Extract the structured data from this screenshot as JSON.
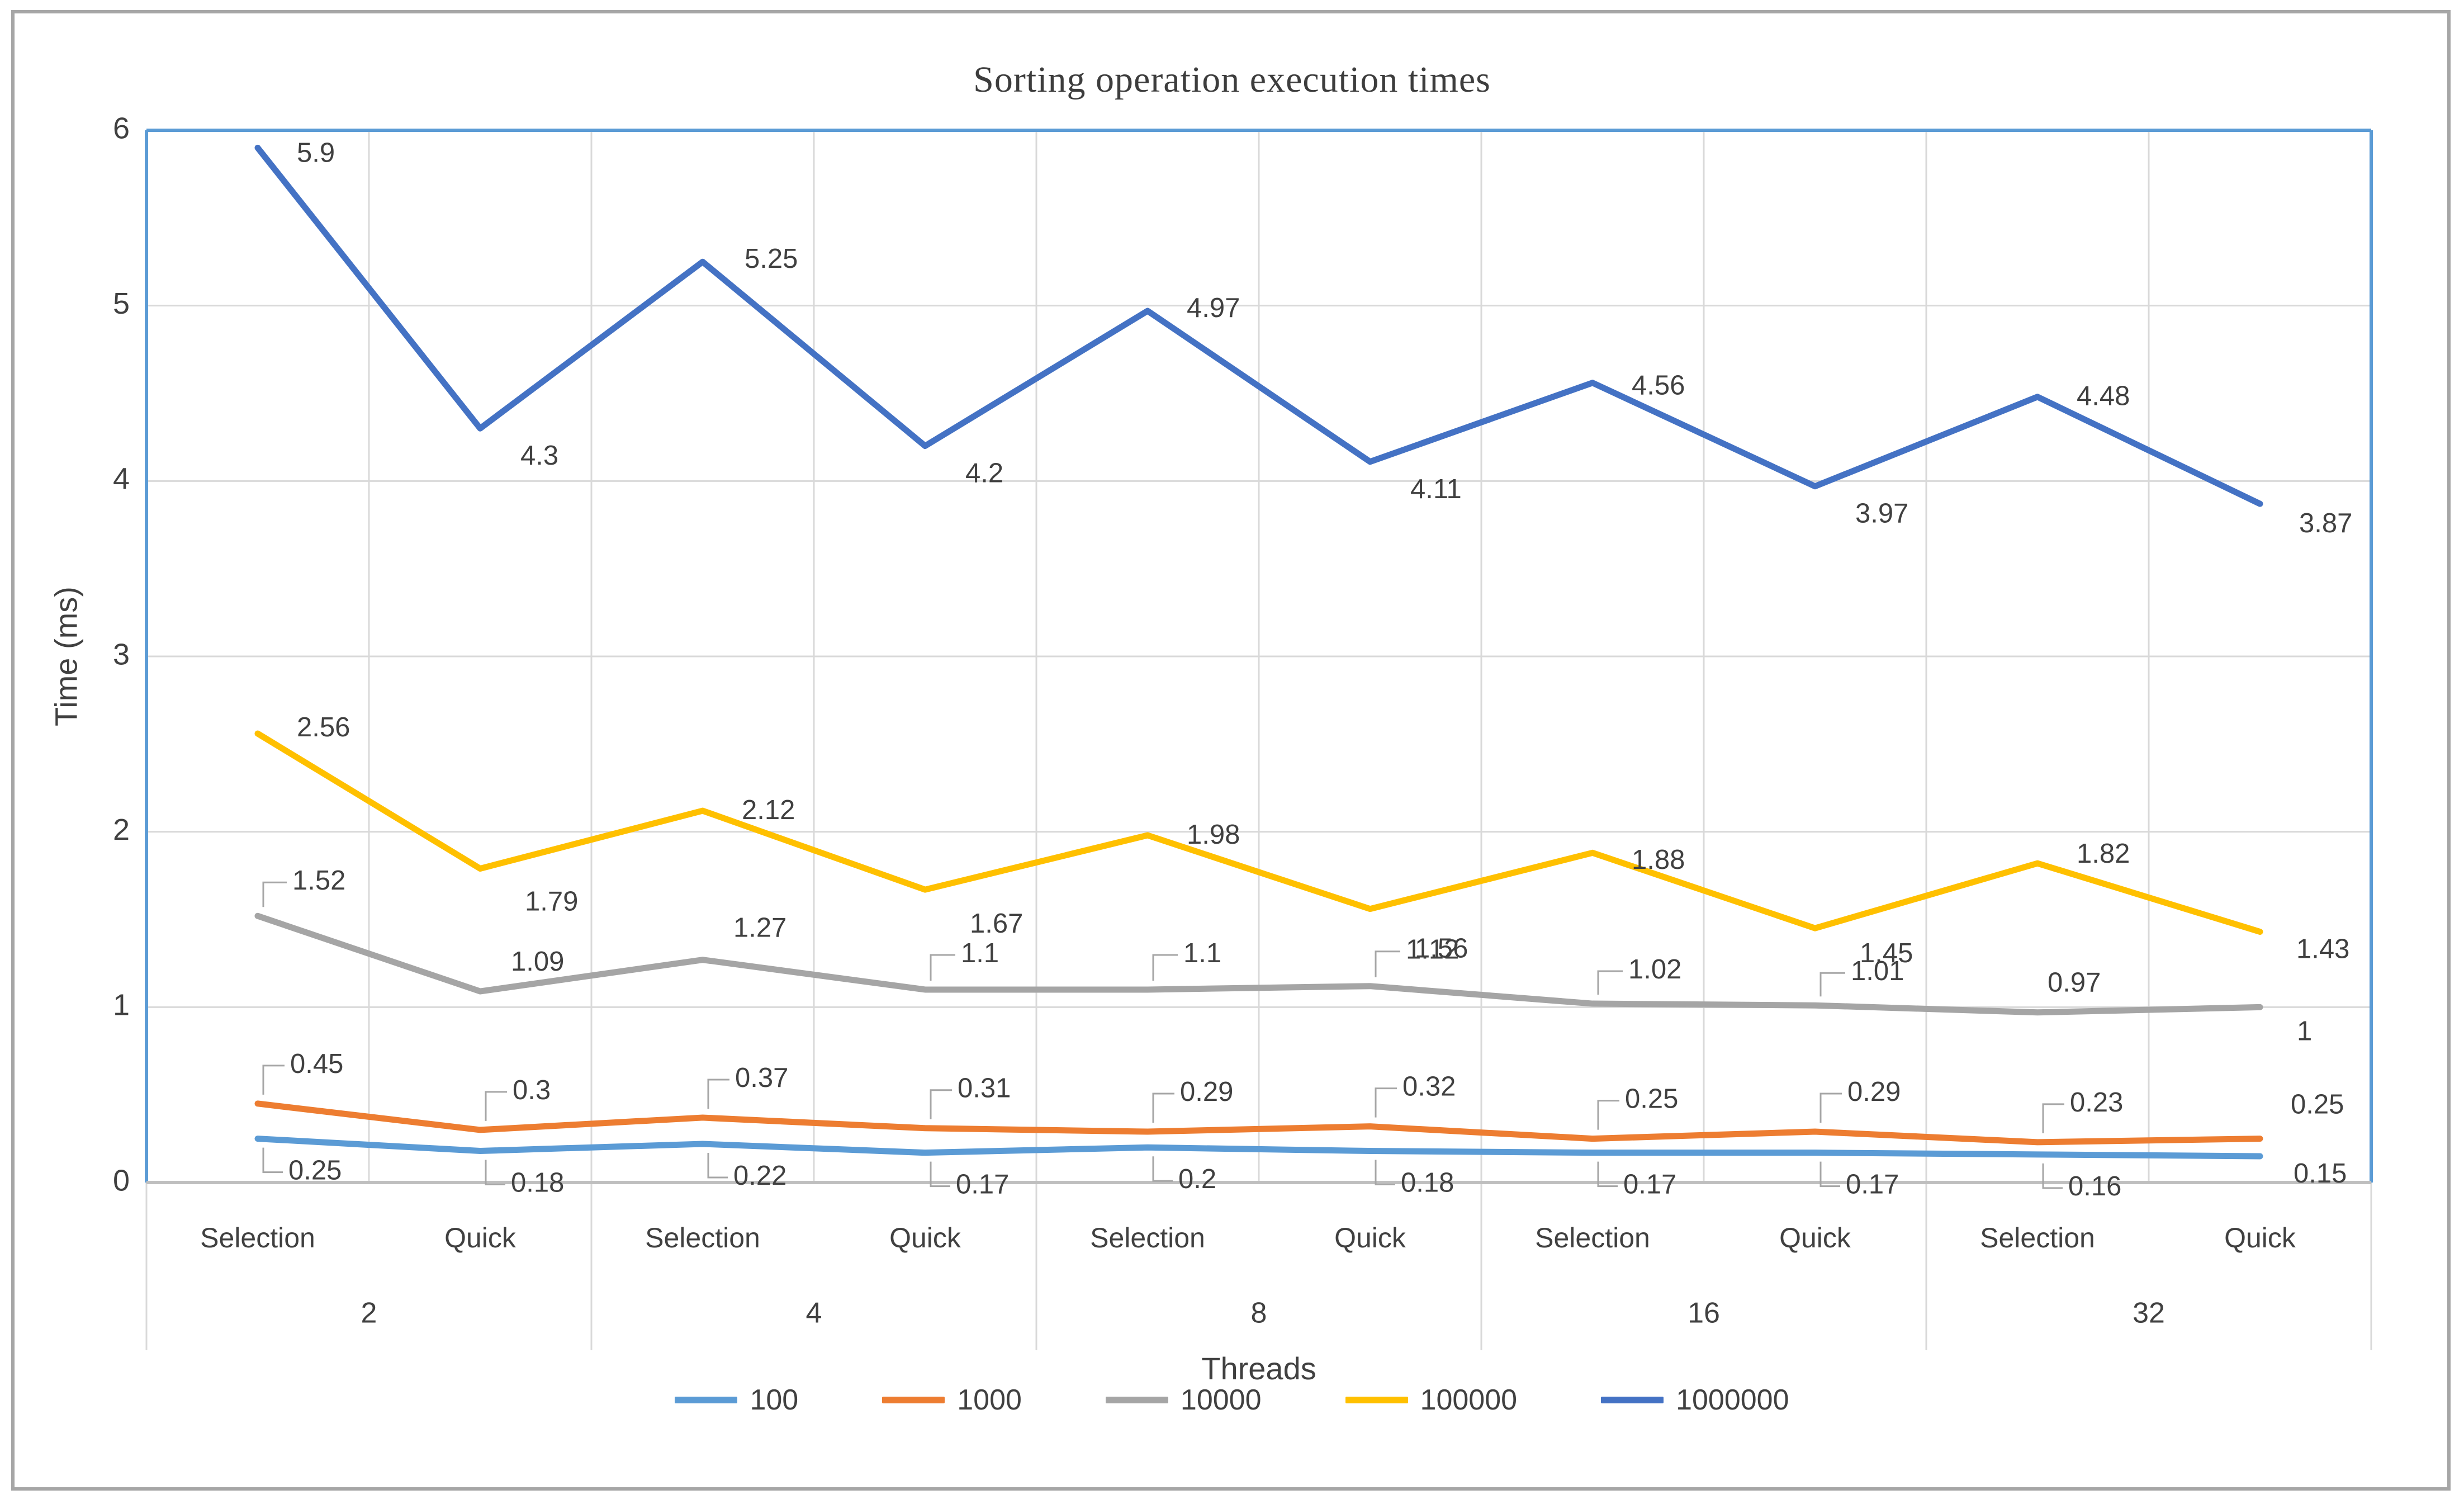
{
  "chart_data": {
    "type": "line",
    "title": "Sorting operation execution times",
    "ylabel": "Time (ms)",
    "xlabel": "Threads",
    "ylim": [
      0,
      6
    ],
    "yticks": [
      0,
      1,
      2,
      3,
      4,
      5,
      6
    ],
    "grid": true,
    "legend_position": "bottom",
    "categories": [
      "Selection",
      "Quick",
      "Selection",
      "Quick",
      "Selection",
      "Quick",
      "Selection",
      "Quick",
      "Selection",
      "Quick"
    ],
    "group_labels": [
      "2",
      "4",
      "8",
      "16",
      "32"
    ],
    "series": [
      {
        "name": "100",
        "color": "#5B9BD5",
        "values": [
          0.25,
          0.18,
          0.22,
          0.17,
          0.2,
          0.18,
          0.17,
          0.17,
          0.16,
          0.15
        ]
      },
      {
        "name": "1000",
        "color": "#ED7D31",
        "values": [
          0.45,
          0.3,
          0.37,
          0.31,
          0.29,
          0.32,
          0.25,
          0.29,
          0.23,
          0.25
        ]
      },
      {
        "name": "10000",
        "color": "#A5A5A5",
        "values": [
          1.52,
          1.09,
          1.27,
          1.1,
          1.1,
          1.12,
          1.02,
          1.01,
          0.97,
          1
        ]
      },
      {
        "name": "100000",
        "color": "#FFC000",
        "values": [
          2.56,
          1.79,
          2.12,
          1.67,
          1.98,
          1.56,
          1.88,
          1.45,
          1.82,
          1.43
        ]
      },
      {
        "name": "1000000",
        "color": "#4472C4",
        "values": [
          5.9,
          4.3,
          5.25,
          4.2,
          4.97,
          4.11,
          4.56,
          3.97,
          4.48,
          3.87
        ]
      }
    ],
    "colors": {
      "gridline": "#D9D9D9",
      "axis_line": "#BFBFBF",
      "plot_border": "#5B9BD5",
      "data_label": "#404040",
      "leader_line": "#A6A6A6",
      "frame_border": "#A6A6A6"
    }
  }
}
